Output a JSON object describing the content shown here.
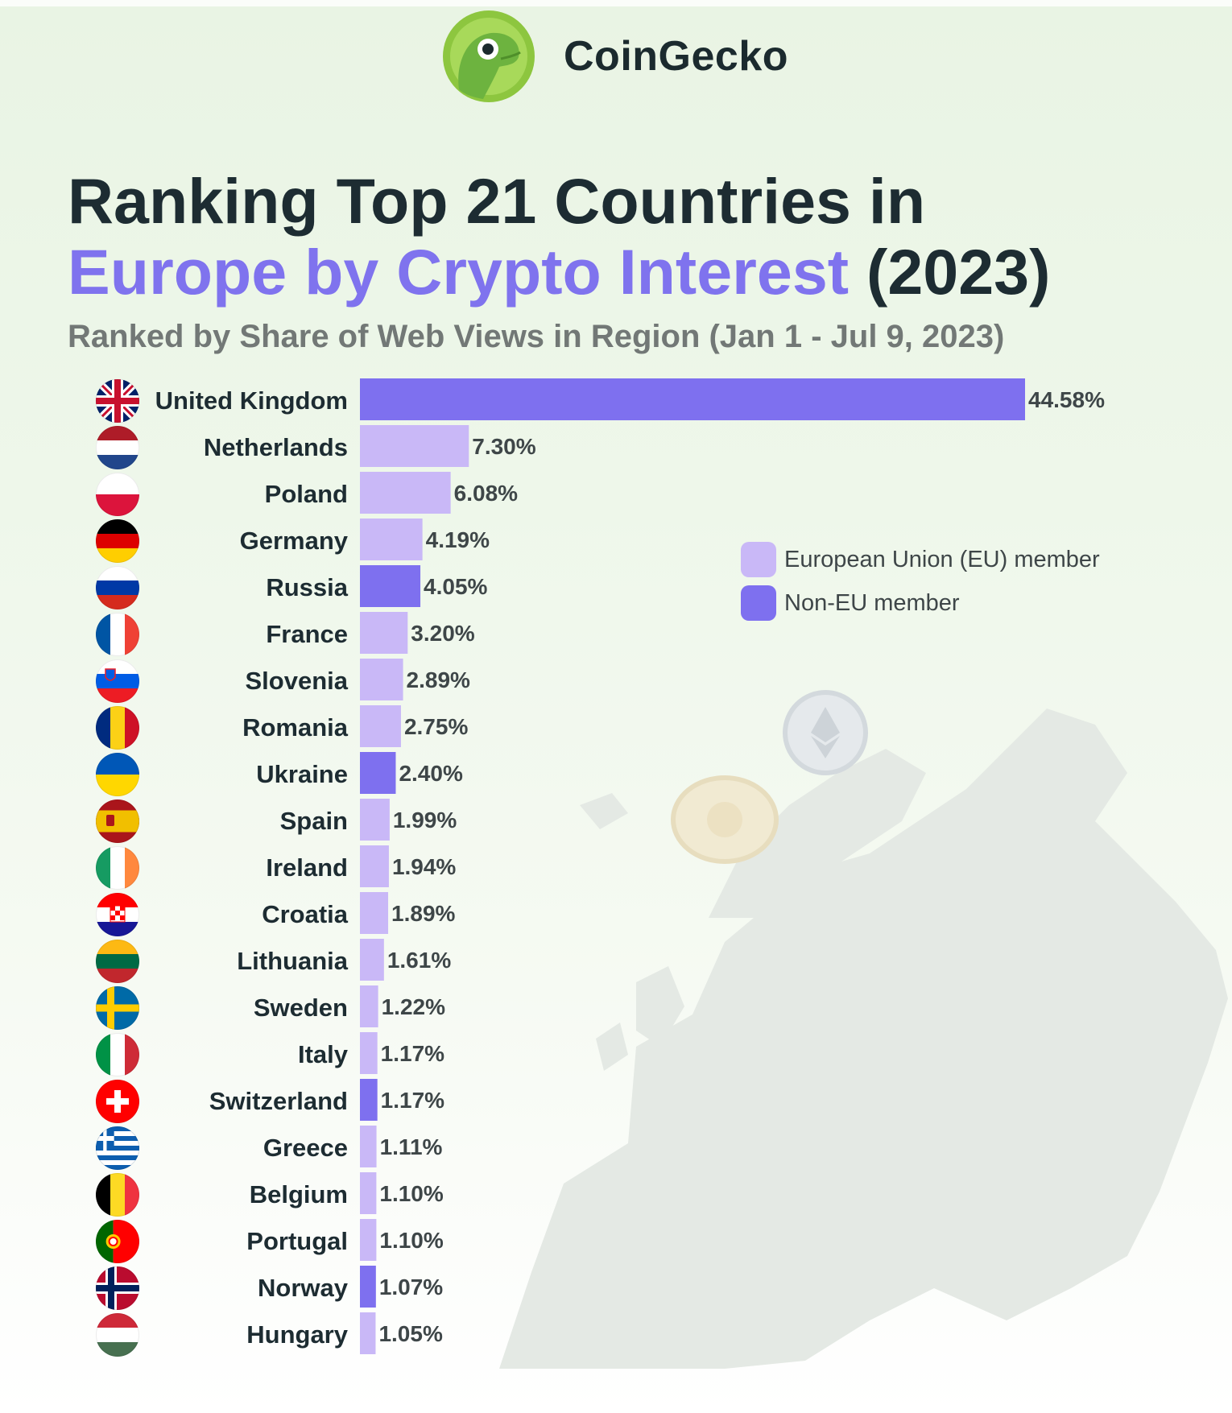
{
  "brand": {
    "name": "CoinGecko",
    "logo_icon": "gecko-logo-icon"
  },
  "title": {
    "line1": "Ranking Top 21 Countries in",
    "line2_accent": "Europe by Crypto Interest",
    "line2_rest": " (2023)"
  },
  "subtitle": "Ranked by Share of Web Views in Region (Jan 1 - Jul 9, 2023)",
  "colors": {
    "eu": "#c9b8f7",
    "non_eu": "#7e70ef",
    "title_accent": "#7f73ee",
    "text_dark": "#1d2c32"
  },
  "legend": {
    "items": [
      {
        "label": "European Union (EU) member",
        "group": "eu"
      },
      {
        "label": "Non-EU member",
        "group": "non_eu"
      }
    ]
  },
  "chart_data": {
    "type": "bar",
    "orientation": "horizontal",
    "title": "Ranking Top 21 Countries in Europe by Crypto Interest (2023)",
    "subtitle": "Ranked by Share of Web Views in Region (Jan 1 - Jul 9, 2023)",
    "xlabel": "",
    "ylabel": "",
    "xlim": [
      0,
      44.58
    ],
    "grid": false,
    "legend_position": "right",
    "value_unit": "%",
    "categories": [
      "United Kingdom",
      "Netherlands",
      "Poland",
      "Germany",
      "Russia",
      "France",
      "Slovenia",
      "Romania",
      "Ukraine",
      "Spain",
      "Ireland",
      "Croatia",
      "Lithuania",
      "Sweden",
      "Italy",
      "Switzerland",
      "Greece",
      "Belgium",
      "Portugal",
      "Norway",
      "Hungary"
    ],
    "values": [
      44.58,
      7.3,
      6.08,
      4.19,
      4.05,
      3.2,
      2.89,
      2.75,
      2.4,
      1.99,
      1.94,
      1.89,
      1.61,
      1.22,
      1.17,
      1.17,
      1.11,
      1.1,
      1.1,
      1.07,
      1.05
    ],
    "value_labels": [
      "44.58%",
      "7.30%",
      "6.08%",
      "4.19%",
      "4.05%",
      "3.20%",
      "2.89%",
      "2.75%",
      "2.40%",
      "1.99%",
      "1.94%",
      "1.89%",
      "1.61%",
      "1.22%",
      "1.17%",
      "1.17%",
      "1.11%",
      "1.10%",
      "1.10%",
      "1.07%",
      "1.05%"
    ],
    "groups": [
      "non_eu",
      "eu",
      "eu",
      "eu",
      "non_eu",
      "eu",
      "eu",
      "eu",
      "non_eu",
      "eu",
      "eu",
      "eu",
      "eu",
      "eu",
      "eu",
      "non_eu",
      "eu",
      "eu",
      "eu",
      "non_eu",
      "eu"
    ],
    "flags": [
      "uk-flag-icon",
      "netherlands-flag-icon",
      "poland-flag-icon",
      "germany-flag-icon",
      "russia-flag-icon",
      "france-flag-icon",
      "slovenia-flag-icon",
      "romania-flag-icon",
      "ukraine-flag-icon",
      "spain-flag-icon",
      "ireland-flag-icon",
      "croatia-flag-icon",
      "lithuania-flag-icon",
      "sweden-flag-icon",
      "italy-flag-icon",
      "switzerland-flag-icon",
      "greece-flag-icon",
      "belgium-flag-icon",
      "portugal-flag-icon",
      "norway-flag-icon",
      "hungary-flag-icon"
    ]
  }
}
